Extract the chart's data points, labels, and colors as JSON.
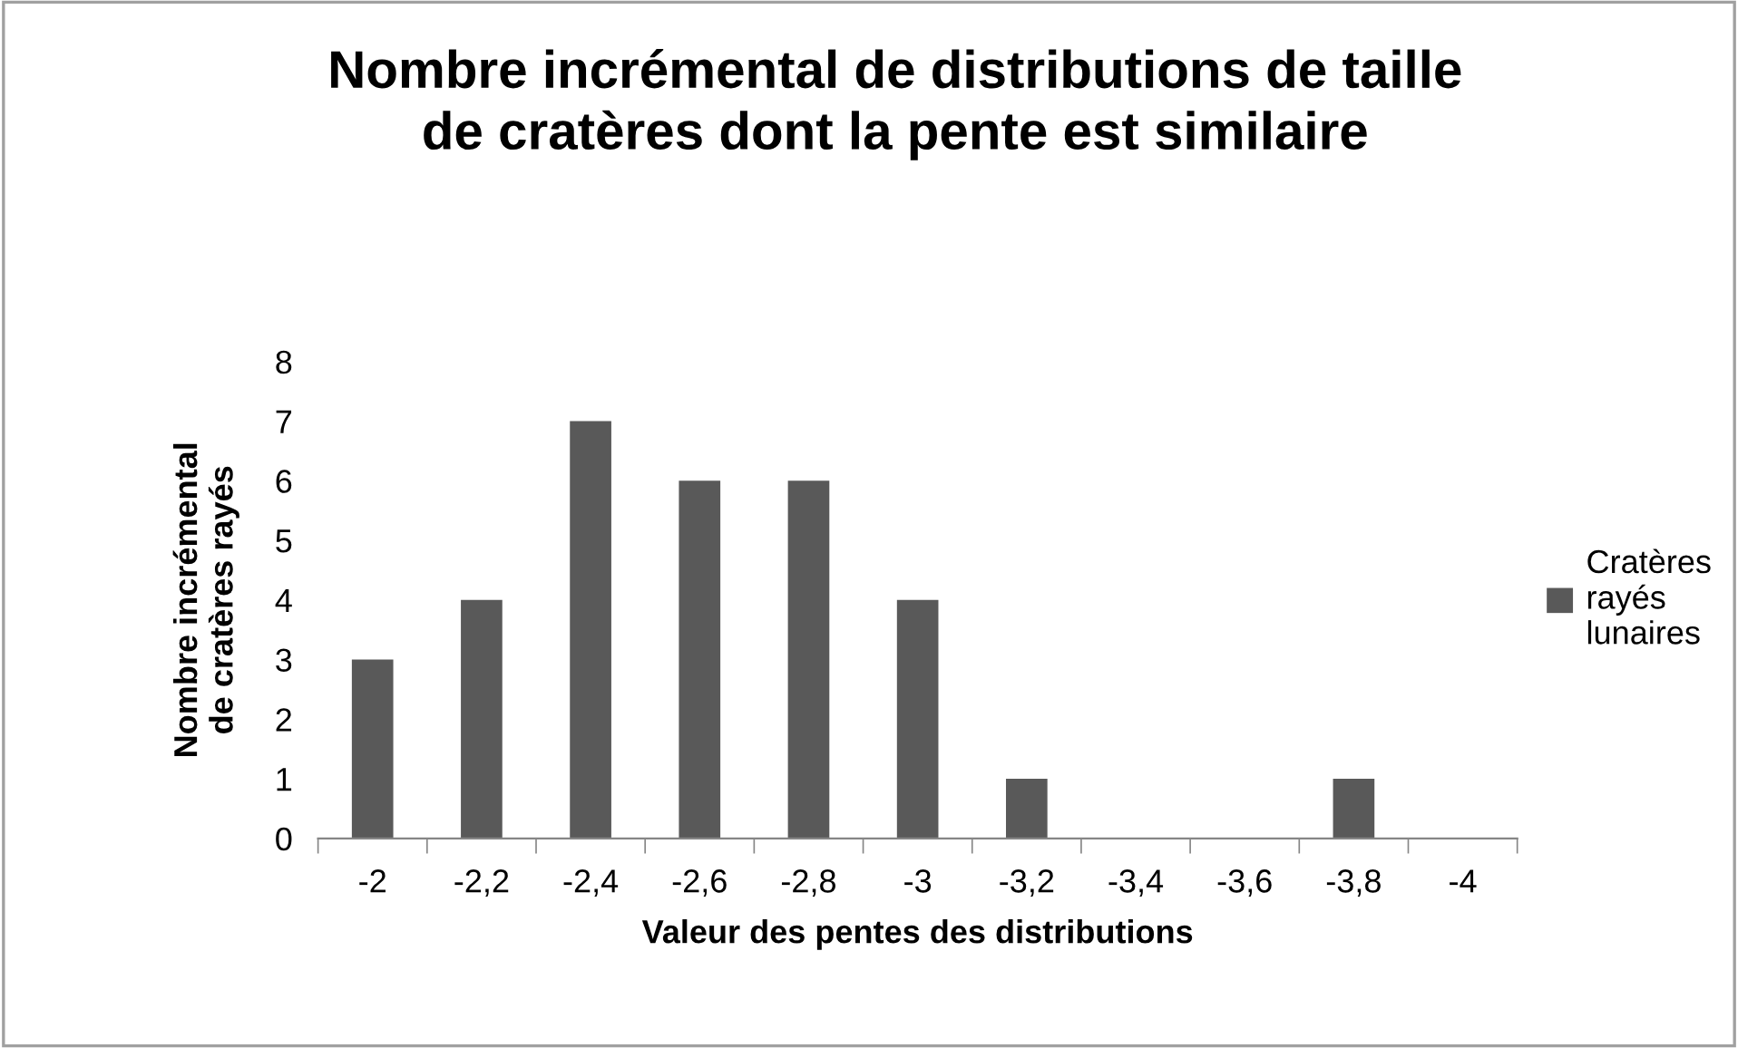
{
  "chart_data": {
    "type": "bar",
    "title": "Nombre incrémental de distributions de taille de cratères dont la pente est similaire",
    "xlabel": "Valeur des pentes des distributions",
    "ylabel": "Nombre incrémental de cratères rayés",
    "categories": [
      "-2",
      "-2,2",
      "-2,4",
      "-2,6",
      "-2,8",
      "-3",
      "-3,2",
      "-3,4",
      "-3,6",
      "-3,8",
      "-4"
    ],
    "series": [
      {
        "name": "Cratères rayés lunaires",
        "color": "#595959",
        "values": [
          3,
          4,
          7,
          6,
          6,
          4,
          1,
          0,
          0,
          1,
          0
        ]
      }
    ],
    "ylim": [
      0,
      8
    ],
    "yticks": [
      0,
      1,
      2,
      3,
      4,
      5,
      6,
      7,
      8
    ],
    "grid": false,
    "legend": "right"
  }
}
